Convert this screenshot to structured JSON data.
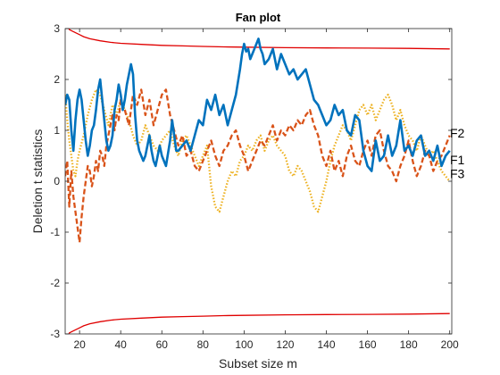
{
  "chart_data": {
    "type": "line",
    "title": "Fan plot",
    "xlabel": "Subset size m",
    "ylabel": "Deletion t statistics",
    "xlim": [
      13,
      201
    ],
    "ylim": [
      -3,
      3
    ],
    "xticks": [
      "20",
      "40",
      "60",
      "80",
      "100",
      "120",
      "140",
      "160",
      "180",
      "200"
    ],
    "yticks": [
      "-3",
      "-2",
      "-1",
      "0",
      "1",
      "2",
      "3"
    ],
    "grid": false,
    "colors": {
      "F1": "#0072BD",
      "F2": "#D95319",
      "F3": "#EDB120",
      "envelope": "#E00000"
    },
    "series": [
      {
        "name": "F1",
        "style": "solid",
        "x": [
          13,
          14,
          15,
          16,
          17,
          18,
          19,
          20,
          21,
          22,
          23,
          24,
          25,
          26,
          27,
          28,
          29,
          30,
          31,
          32,
          33,
          34,
          35,
          36,
          37,
          38,
          39,
          40,
          41,
          42,
          43,
          44,
          45,
          46,
          47,
          48,
          49,
          50,
          51,
          52,
          53,
          54,
          55,
          56,
          57,
          58,
          59,
          60,
          62,
          64,
          65,
          66,
          67,
          68,
          70,
          72,
          74,
          76,
          78,
          80,
          82,
          84,
          86,
          88,
          90,
          92,
          94,
          96,
          98,
          99,
          100,
          101,
          102,
          103,
          104,
          105,
          106,
          107,
          108,
          109,
          110,
          112,
          114,
          116,
          118,
          120,
          122,
          124,
          126,
          128,
          130,
          132,
          134,
          136,
          138,
          140,
          142,
          144,
          146,
          148,
          150,
          152,
          154,
          156,
          158,
          160,
          162,
          164,
          166,
          168,
          170,
          172,
          174,
          176,
          178,
          180,
          182,
          184,
          186,
          188,
          190,
          192,
          194,
          196,
          198,
          200
        ],
        "values": [
          1.5,
          1.7,
          1.6,
          1.0,
          0.6,
          1.2,
          1.6,
          1.8,
          1.6,
          1.2,
          0.8,
          0.5,
          0.7,
          1.0,
          1.1,
          1.4,
          1.8,
          2.0,
          1.6,
          1.2,
          0.8,
          0.6,
          0.7,
          0.9,
          1.4,
          1.6,
          1.9,
          1.7,
          1.4,
          1.6,
          1.9,
          2.1,
          2.3,
          2.1,
          1.3,
          0.8,
          0.6,
          0.5,
          0.4,
          0.5,
          0.7,
          0.9,
          0.6,
          0.4,
          0.3,
          0.5,
          0.7,
          0.5,
          0.3,
          0.8,
          1.2,
          0.9,
          0.6,
          0.6,
          0.7,
          0.8,
          0.6,
          0.9,
          1.2,
          1.1,
          1.6,
          1.4,
          1.7,
          1.3,
          1.5,
          1.1,
          1.4,
          1.7,
          2.2,
          2.5,
          2.7,
          2.55,
          2.6,
          2.4,
          2.5,
          2.6,
          2.7,
          2.8,
          2.6,
          2.5,
          2.3,
          2.4,
          2.6,
          2.2,
          2.5,
          2.3,
          2.1,
          2.2,
          2.0,
          2.1,
          2.2,
          1.9,
          1.6,
          1.5,
          1.3,
          1.1,
          1.2,
          1.5,
          1.3,
          1.4,
          1.0,
          0.9,
          1.3,
          1.2,
          0.6,
          0.3,
          0.2,
          0.8,
          0.4,
          0.5,
          0.9,
          0.5,
          0.7,
          1.2,
          0.6,
          0.7,
          0.5,
          0.8,
          0.9,
          0.5,
          0.6,
          0.4,
          0.7,
          0.3,
          0.5,
          0.6
        ]
      },
      {
        "name": "F2",
        "style": "dashed",
        "x": [
          13,
          14,
          15,
          16,
          17,
          18,
          19,
          20,
          21,
          22,
          23,
          24,
          25,
          26,
          27,
          28,
          29,
          30,
          31,
          32,
          33,
          34,
          35,
          36,
          37,
          38,
          39,
          40,
          42,
          44,
          46,
          48,
          50,
          52,
          54,
          56,
          58,
          60,
          62,
          64,
          66,
          68,
          70,
          72,
          74,
          76,
          78,
          80,
          82,
          84,
          86,
          88,
          90,
          92,
          94,
          96,
          98,
          100,
          102,
          104,
          106,
          108,
          110,
          112,
          114,
          116,
          118,
          120,
          122,
          124,
          126,
          128,
          130,
          132,
          134,
          136,
          138,
          140,
          142,
          144,
          146,
          148,
          150,
          152,
          154,
          156,
          158,
          160,
          162,
          164,
          166,
          168,
          170,
          172,
          174,
          176,
          178,
          180,
          182,
          184,
          186,
          188,
          190,
          192,
          194,
          196,
          198,
          200
        ],
        "values": [
          0.1,
          0.4,
          -0.5,
          0.2,
          -0.3,
          -0.6,
          -0.9,
          -1.2,
          -0.7,
          -0.3,
          0.0,
          0.3,
          0.2,
          -0.1,
          0.1,
          0.4,
          0.2,
          0.6,
          0.5,
          0.3,
          0.7,
          0.9,
          1.1,
          1.3,
          1.0,
          1.3,
          1.2,
          1.6,
          1.4,
          1.1,
          1.7,
          1.5,
          1.8,
          1.3,
          1.6,
          1.1,
          1.4,
          1.7,
          1.8,
          1.3,
          1.0,
          0.7,
          0.9,
          0.5,
          0.6,
          0.3,
          0.2,
          0.4,
          0.6,
          0.8,
          0.5,
          0.3,
          0.6,
          0.7,
          0.9,
          1.0,
          0.7,
          0.5,
          0.2,
          0.4,
          0.6,
          0.8,
          0.7,
          0.9,
          1.1,
          0.8,
          1.0,
          0.9,
          1.1,
          1.0,
          1.2,
          1.1,
          1.3,
          1.4,
          1.1,
          0.9,
          0.5,
          0.3,
          0.6,
          0.2,
          0.4,
          0.1,
          0.5,
          0.7,
          0.4,
          0.3,
          0.6,
          0.8,
          0.5,
          0.9,
          1.0,
          0.6,
          0.3,
          0.2,
          0.0,
          0.3,
          0.5,
          0.8,
          0.4,
          0.1,
          0.3,
          0.6,
          0.5,
          0.2,
          0.4,
          0.5,
          0.7,
          0.9
        ]
      },
      {
        "name": "F3",
        "style": "dotted",
        "x": [
          13,
          14,
          15,
          16,
          17,
          18,
          19,
          20,
          22,
          24,
          26,
          28,
          30,
          32,
          34,
          36,
          38,
          40,
          42,
          44,
          46,
          48,
          50,
          52,
          54,
          56,
          58,
          60,
          62,
          64,
          66,
          68,
          70,
          72,
          74,
          76,
          78,
          80,
          82,
          84,
          86,
          88,
          90,
          92,
          94,
          96,
          98,
          100,
          102,
          104,
          106,
          108,
          110,
          112,
          114,
          116,
          118,
          120,
          122,
          124,
          126,
          128,
          130,
          132,
          134,
          136,
          138,
          140,
          142,
          144,
          146,
          148,
          150,
          152,
          154,
          156,
          158,
          160,
          162,
          164,
          166,
          168,
          170,
          172,
          174,
          176,
          178,
          180,
          182,
          184,
          186,
          188,
          190,
          192,
          194,
          196,
          198,
          200
        ],
        "values": [
          1.7,
          1.2,
          0.8,
          0.5,
          0.2,
          0.1,
          0.4,
          0.6,
          0.9,
          1.3,
          1.6,
          1.8,
          1.7,
          1.4,
          1.1,
          1.5,
          1.3,
          1.6,
          1.4,
          1.2,
          0.9,
          0.7,
          0.8,
          1.1,
          0.9,
          0.7,
          0.6,
          0.8,
          0.9,
          1.0,
          0.7,
          0.5,
          0.8,
          0.9,
          0.7,
          0.5,
          0.3,
          0.5,
          0.7,
          -0.1,
          -0.5,
          -0.6,
          -0.3,
          0.0,
          0.2,
          0.1,
          0.4,
          0.5,
          0.7,
          0.6,
          0.8,
          0.9,
          0.6,
          0.8,
          0.9,
          0.7,
          0.6,
          0.5,
          0.2,
          0.1,
          0.3,
          0.2,
          0.0,
          -0.2,
          -0.5,
          -0.6,
          -0.3,
          0.0,
          0.4,
          0.7,
          0.9,
          1.1,
          1.0,
          0.8,
          1.1,
          1.4,
          1.5,
          1.3,
          1.5,
          1.2,
          1.4,
          1.6,
          1.7,
          1.5,
          1.2,
          1.4,
          1.1,
          0.9,
          0.8,
          0.6,
          0.9,
          0.7,
          0.5,
          0.6,
          0.4,
          0.2,
          0.1,
          0.0
        ]
      }
    ],
    "envelope": {
      "x": [
        13,
        14,
        15,
        16,
        18,
        20,
        22,
        25,
        30,
        35,
        40,
        50,
        60,
        70,
        80,
        90,
        100,
        120,
        140,
        160,
        180,
        200
      ],
      "upper": [
        3.25,
        3.1,
        2.98,
        2.96,
        2.92,
        2.88,
        2.84,
        2.8,
        2.76,
        2.73,
        2.71,
        2.69,
        2.67,
        2.66,
        2.65,
        2.64,
        2.635,
        2.625,
        2.62,
        2.615,
        2.61,
        2.6
      ],
      "lower": [
        -3.25,
        -3.1,
        -2.98,
        -2.96,
        -2.92,
        -2.88,
        -2.84,
        -2.8,
        -2.76,
        -2.73,
        -2.71,
        -2.69,
        -2.67,
        -2.66,
        -2.65,
        -2.64,
        -2.635,
        -2.625,
        -2.62,
        -2.615,
        -2.61,
        -2.6
      ]
    },
    "end_labels": [
      {
        "text": "F2",
        "y": 0.95
      },
      {
        "text": "F1",
        "y": 0.42
      },
      {
        "text": "F3",
        "y": 0.15
      }
    ]
  }
}
